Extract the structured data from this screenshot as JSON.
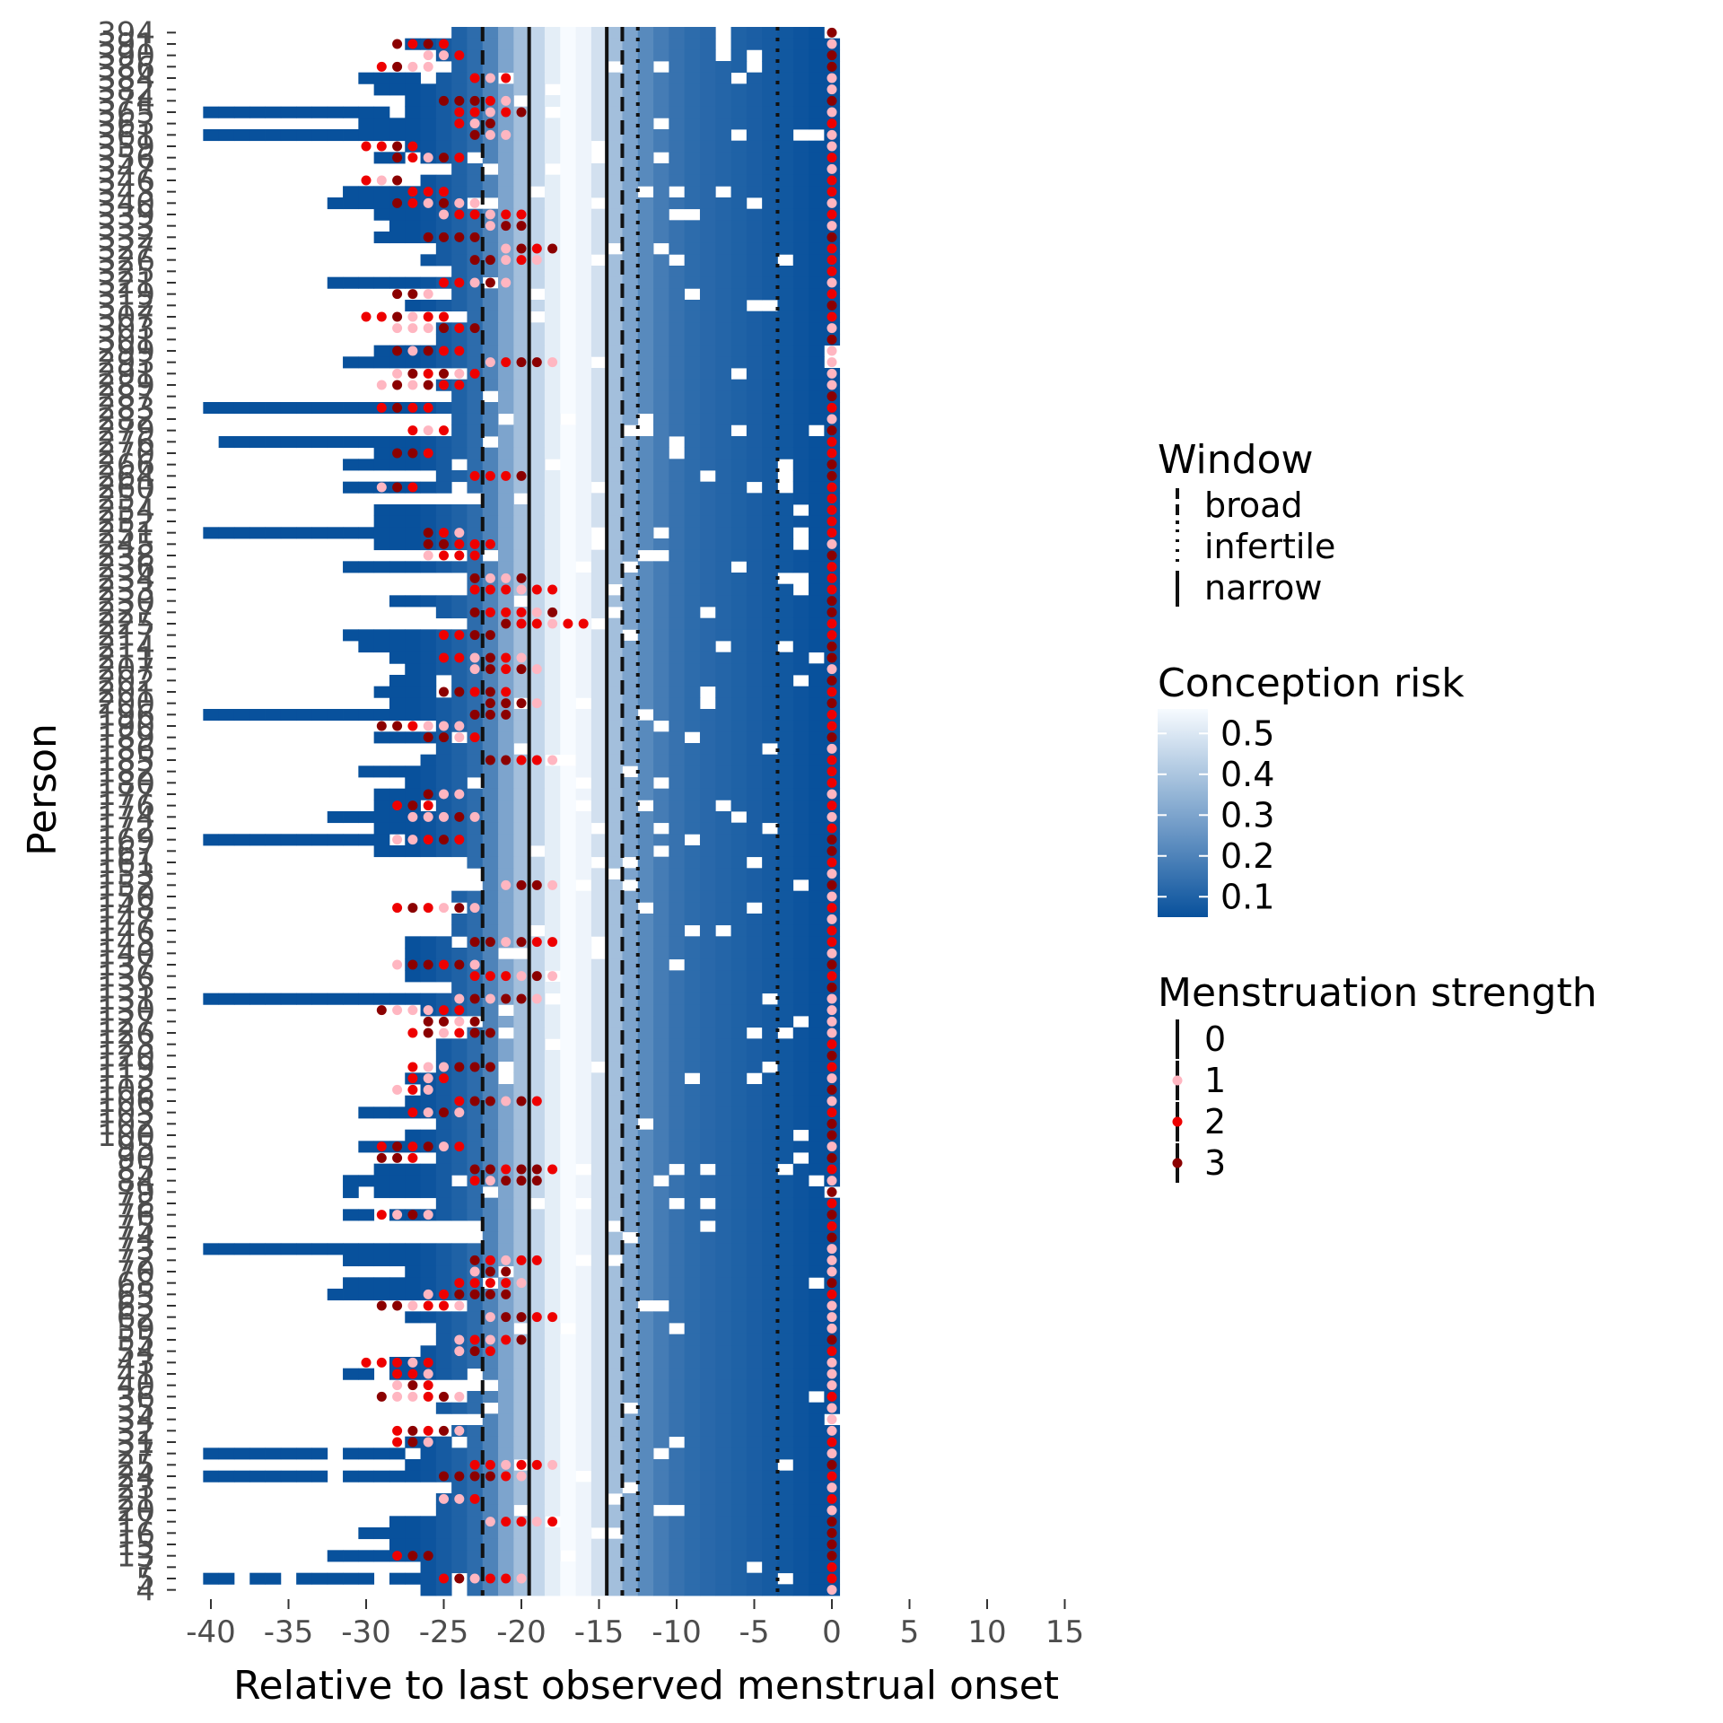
{
  "chart_data": {
    "type": "heatmap",
    "xlabel": "Relative to last observed menstrual onset",
    "ylabel": "Person",
    "xlim": [
      -40,
      15
    ],
    "x_ticks": [
      "-40",
      "-35",
      "-30",
      "-25",
      "-20",
      "-15",
      "-10",
      "-5",
      "0",
      "5",
      "10",
      "15"
    ],
    "x_tick_values": [
      -40,
      -35,
      -30,
      -25,
      -20,
      -15,
      -10,
      -5,
      0,
      5,
      10,
      15
    ],
    "y_ticks": [
      "394",
      "391",
      "390",
      "386",
      "384",
      "382",
      "374",
      "365",
      "363",
      "361",
      "359",
      "356",
      "347",
      "346",
      "343",
      "340",
      "339",
      "333",
      "332",
      "327",
      "326",
      "325",
      "321",
      "319",
      "312",
      "307",
      "303",
      "301",
      "299",
      "293",
      "291",
      "289",
      "287",
      "283",
      "282",
      "279",
      "276",
      "270",
      "266",
      "264",
      "260",
      "257",
      "254",
      "252",
      "251",
      "245",
      "238",
      "236",
      "234",
      "233",
      "230",
      "227",
      "225",
      "217",
      "214",
      "211",
      "207",
      "202",
      "201",
      "200",
      "196",
      "190",
      "189",
      "186",
      "185",
      "182",
      "180",
      "177",
      "176",
      "174",
      "172",
      "169",
      "167",
      "161",
      "153",
      "152",
      "150",
      "148",
      "147",
      "146",
      "143",
      "140",
      "137",
      "136",
      "133",
      "131",
      "130",
      "127",
      "126",
      "123",
      "120",
      "119",
      "113",
      "108",
      "106",
      "103",
      "102",
      "100",
      "95",
      "90",
      "85",
      "84",
      "79",
      "78",
      "76",
      "75",
      "74",
      "73",
      "72",
      "70",
      "68",
      "65",
      "63",
      "62",
      "59",
      "55",
      "54",
      "43",
      "41",
      "40",
      "36",
      "35",
      "34",
      "32",
      "31",
      "27",
      "25",
      "24",
      "23",
      "21",
      "20",
      "17",
      "16",
      "15",
      "13",
      "7",
      "5",
      "4"
    ],
    "windows": {
      "broad": [
        -22.5,
        -13.5
      ],
      "narrow": [
        -19.5,
        -14.5
      ],
      "infertile": [
        -12.5,
        -3.5
      ]
    },
    "conception_risk_by_day": [
      {
        "day": -40,
        "risk": 0.05
      },
      {
        "day": -39,
        "risk": 0.05
      },
      {
        "day": -38,
        "risk": 0.05
      },
      {
        "day": -37,
        "risk": 0.05
      },
      {
        "day": -36,
        "risk": 0.05
      },
      {
        "day": -35,
        "risk": 0.05
      },
      {
        "day": -34,
        "risk": 0.05
      },
      {
        "day": -33,
        "risk": 0.05
      },
      {
        "day": -32,
        "risk": 0.05
      },
      {
        "day": -31,
        "risk": 0.05
      },
      {
        "day": -30,
        "risk": 0.05
      },
      {
        "day": -29,
        "risk": 0.05
      },
      {
        "day": -28,
        "risk": 0.05
      },
      {
        "day": -27,
        "risk": 0.05
      },
      {
        "day": -26,
        "risk": 0.06
      },
      {
        "day": -25,
        "risk": 0.08
      },
      {
        "day": -24,
        "risk": 0.1
      },
      {
        "day": -23,
        "risk": 0.13
      },
      {
        "day": -22,
        "risk": 0.2
      },
      {
        "day": -21,
        "risk": 0.3
      },
      {
        "day": -20,
        "risk": 0.38
      },
      {
        "day": -19,
        "risk": 0.45
      },
      {
        "day": -18,
        "risk": 0.52
      },
      {
        "day": -17,
        "risk": 0.56
      },
      {
        "day": -16,
        "risk": 0.54
      },
      {
        "day": -15,
        "risk": 0.48
      },
      {
        "day": -14,
        "risk": 0.38
      },
      {
        "day": -13,
        "risk": 0.3
      },
      {
        "day": -12,
        "risk": 0.22
      },
      {
        "day": -11,
        "risk": 0.18
      },
      {
        "day": -10,
        "risk": 0.15
      },
      {
        "day": -9,
        "risk": 0.13
      },
      {
        "day": -8,
        "risk": 0.12
      },
      {
        "day": -7,
        "risk": 0.11
      },
      {
        "day": -6,
        "risk": 0.1
      },
      {
        "day": -5,
        "risk": 0.09
      },
      {
        "day": -4,
        "risk": 0.08
      },
      {
        "day": -3,
        "risk": 0.07
      },
      {
        "day": -2,
        "risk": 0.06
      },
      {
        "day": -1,
        "risk": 0.05
      },
      {
        "day": 0,
        "risk": 0.05
      }
    ],
    "legend": {
      "window_title": "Window",
      "window_entries": [
        {
          "label": "broad",
          "linetype": "dashed"
        },
        {
          "label": "infertile",
          "linetype": "dotted"
        },
        {
          "label": "narrow",
          "linetype": "solid"
        }
      ],
      "risk_title": "Conception risk",
      "risk_breaks": [
        "0.5",
        "0.4",
        "0.3",
        "0.2",
        "0.1"
      ],
      "risk_break_values": [
        0.5,
        0.4,
        0.3,
        0.2,
        0.1
      ],
      "risk_range": [
        0.05,
        0.56
      ],
      "strength_title": "Menstruation strength",
      "strength_entries": [
        {
          "label": "0",
          "color": "#1a1a1a"
        },
        {
          "label": "1",
          "color": "#ffb6c1"
        },
        {
          "label": "2",
          "color": "#ee0000"
        },
        {
          "label": "3",
          "color": "#8b0000"
        }
      ]
    },
    "colors": {
      "risk_low": "#08519c",
      "risk_high": "#f7fbff",
      "strength_1": "#ffb6c1",
      "strength_2": "#ee0000",
      "strength_3": "#8b0000"
    },
    "grid": false,
    "legend_position": "right"
  }
}
